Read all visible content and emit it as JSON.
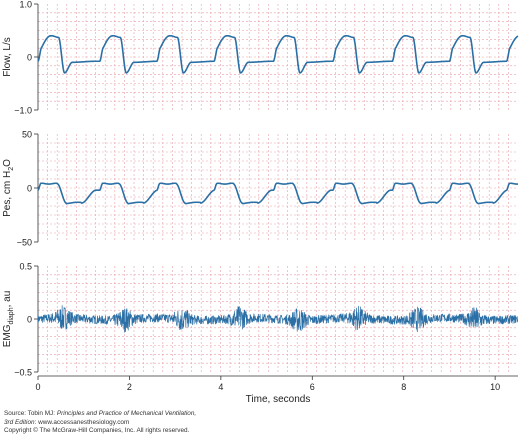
{
  "chart_data": [
    {
      "type": "line",
      "ylabel": "Flow, L/s",
      "ylim": [
        -1.0,
        1.0
      ],
      "yticks": [
        "1.0",
        "0",
        "−1.0"
      ],
      "ytick_values": [
        1.0,
        0,
        -1.0
      ],
      "grid": true,
      "line_color": "#2a6fa5",
      "breath_onsets_s": [
        0.0,
        1.35,
        2.6,
        3.85,
        5.15,
        6.45,
        7.75,
        9.0,
        10.25
      ],
      "inspiratory_peak": 0.4,
      "expiratory_trough": -0.3,
      "end_expiratory_level": -0.08
    },
    {
      "type": "line",
      "ylabel_parts": [
        "Pes, cm H",
        "2",
        "O"
      ],
      "ylim": [
        -50,
        50
      ],
      "yticks": [
        "50",
        "0",
        "−50"
      ],
      "ytick_values": [
        50,
        0,
        -50
      ],
      "grid": true,
      "line_color": "#2a6fa5",
      "peak_negative": -14,
      "end_expiratory_plateau": 4
    },
    {
      "type": "line",
      "ylabel_parts": [
        "EMG",
        "diaph",
        ", au"
      ],
      "ylim": [
        -0.5,
        0.5
      ],
      "yticks": [
        "0.5",
        "0",
        "−0.5"
      ],
      "ytick_values": [
        0.5,
        0,
        -0.5
      ],
      "grid": true,
      "line_color": "#2a6fa5",
      "baseline_noise_amplitude": 0.04,
      "burst_amplitude": 0.12
    }
  ],
  "xaxis": {
    "label": "Time, seconds",
    "ticks": [
      "0",
      "2",
      "4",
      "6",
      "8",
      "10"
    ],
    "tick_values": [
      0,
      2,
      4,
      6,
      8,
      10
    ],
    "xlim": [
      0,
      10.5
    ]
  },
  "source": {
    "line1_prefix": "Source: Tobin MJ: ",
    "line1_title": "Principles and Practice of Mechanical Ventilation,",
    "line2_edition": "3rd Edition",
    "line2_rest": ": www.accessanesthesiology.com",
    "line3": "Copyright © The McGraw-Hill Companies, Inc. All rights reserved."
  },
  "colors": {
    "grid": "#e8a0a8",
    "trace": "#2a6fa5",
    "axis": "#333333"
  }
}
